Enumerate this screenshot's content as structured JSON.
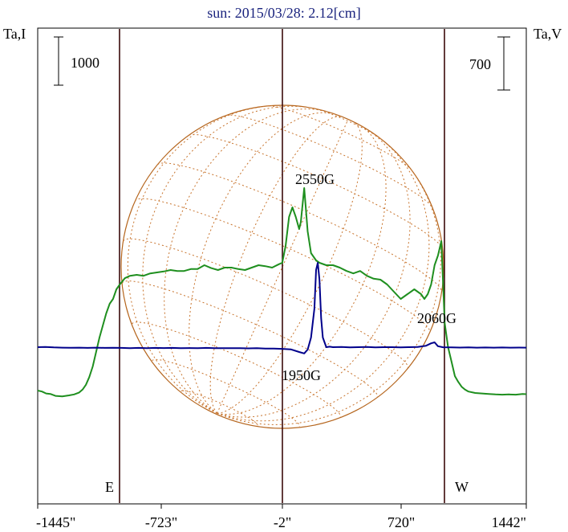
{
  "chart_data": {
    "type": "line",
    "title": "sun: 2015/03/28: 2.12[cm]",
    "ylabel_left": "Ta,I",
    "ylabel_right": "Ta,V",
    "scale_left_label": "1000",
    "scale_right_label": "700",
    "x_ticks": [
      "-1445\"",
      "-723\"",
      "-2\"",
      "720\"",
      "1442\""
    ],
    "xlim": [
      -1445,
      1442
    ],
    "limb_labels": {
      "east": "E",
      "west": "W"
    },
    "annotations": [
      {
        "text": "2550G",
        "x": 210,
        "level": 2750
      },
      {
        "text": "2060G",
        "x": 900,
        "level": 1300
      },
      {
        "text": "1950G",
        "x": 210,
        "level": 850
      }
    ],
    "series": [
      {
        "color": "#1f8f1f",
        "x": [
          -1445,
          -1420,
          -1395,
          -1370,
          -1340,
          -1300,
          -1260,
          -1230,
          -1200,
          -1180,
          -1160,
          -1140,
          -1120,
          -1100,
          -1080,
          -1060,
          -1040,
          -1020,
          -1000,
          -980,
          -960,
          -930,
          -900,
          -860,
          -820,
          -780,
          -740,
          -700,
          -660,
          -620,
          -580,
          -540,
          -500,
          -460,
          -420,
          -380,
          -340,
          -300,
          -260,
          -220,
          -180,
          -140,
          -100,
          -60,
          -20,
          0,
          20,
          40,
          60,
          80,
          100,
          110,
          130,
          150,
          170,
          200,
          220,
          260,
          300,
          340,
          380,
          420,
          460,
          500,
          540,
          580,
          620,
          660,
          700,
          740,
          780,
          820,
          840,
          860,
          880,
          900,
          920,
          940,
          960,
          980,
          1000,
          1020,
          1040,
          1060,
          1080,
          1100,
          1140,
          1180,
          1220,
          1260,
          1300,
          1340,
          1380,
          1420,
          1442
        ],
        "y": [
          100,
          80,
          40,
          30,
          -10,
          -20,
          0,
          20,
          60,
          120,
          220,
          380,
          600,
          900,
          1200,
          1450,
          1700,
          1900,
          2000,
          2200,
          2300,
          2430,
          2480,
          2500,
          2480,
          2530,
          2550,
          2570,
          2600,
          2580,
          2580,
          2620,
          2620,
          2700,
          2640,
          2600,
          2650,
          2650,
          2620,
          2600,
          2650,
          2700,
          2680,
          2650,
          2720,
          2750,
          3100,
          3700,
          3900,
          3700,
          3450,
          3600,
          4300,
          3400,
          2950,
          2800,
          2750,
          2700,
          2700,
          2650,
          2580,
          2530,
          2580,
          2480,
          2420,
          2400,
          2300,
          2150,
          2000,
          2100,
          2200,
          2100,
          2000,
          2100,
          2300,
          2700,
          2900,
          3200,
          1500,
          1000,
          700,
          400,
          280,
          180,
          120,
          80,
          50,
          40,
          30,
          20,
          15,
          20,
          15,
          30,
          25
        ],
        "_unused": null
      },
      {
        "color": "#00008b",
        "x": [
          -1445,
          -1400,
          -1350,
          -1300,
          -1250,
          -1200,
          -1150,
          -1100,
          -1050,
          -1000,
          -950,
          -900,
          -850,
          -800,
          -750,
          -700,
          -650,
          -600,
          -550,
          -500,
          -450,
          -400,
          -350,
          -300,
          -250,
          -200,
          -150,
          -100,
          -50,
          0,
          50,
          100,
          130,
          150,
          170,
          190,
          200,
          210,
          220,
          230,
          240,
          260,
          280,
          300,
          350,
          400,
          450,
          500,
          550,
          600,
          650,
          700,
          750,
          800,
          850,
          880,
          900,
          920,
          950,
          1000,
          1050,
          1100,
          1150,
          1200,
          1250,
          1300,
          1350,
          1400,
          1442
        ],
        "y": [
          1000,
          1005,
          995,
          990,
          988,
          990,
          985,
          990,
          985,
          988,
          985,
          980,
          985,
          980,
          985,
          982,
          985,
          980,
          982,
          980,
          985,
          978,
          980,
          978,
          980,
          975,
          978,
          972,
          970,
          965,
          955,
          900,
          870,
          950,
          1200,
          1800,
          2600,
          2750,
          2400,
          1600,
          1200,
          1000,
          1010,
          1000,
          1005,
          995,
          1000,
          1005,
          995,
          1000,
          1000,
          995,
          1000,
          1005,
          1030,
          1080,
          1100,
          1020,
          998,
          995,
          992,
          995,
          990,
          993,
          990,
          993,
          990,
          992,
          990
        ]
      }
    ]
  }
}
